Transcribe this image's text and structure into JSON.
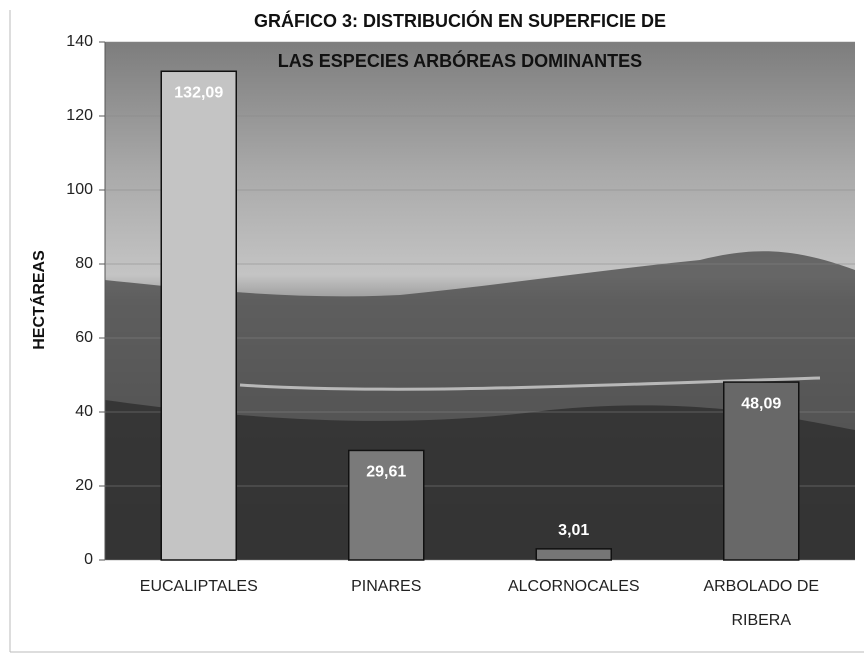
{
  "chart_data": {
    "type": "bar",
    "title": [
      "GRÁFICO 3: DISTRIBUCIÓN  EN SUPERFICIE   DE",
      "LAS ESPECIES ARBÓREAS DOMINANTES"
    ],
    "y_label": "HECTÁREAS",
    "categories": [
      "EUCALIPTALES",
      "PINARES",
      "ALCORNOCALES",
      "ARBOLADO  DE RIBERA"
    ],
    "values": [
      132.09,
      29.61,
      3.01,
      48.09
    ],
    "value_labels": [
      "132,09",
      "29,61",
      "3,01",
      "48,09"
    ],
    "colors": [
      "#c4c4c4",
      "#7a7a7a",
      "#767676",
      "#686868"
    ],
    "ylim": [
      0,
      140
    ],
    "yticks": [
      0,
      20,
      40,
      60,
      80,
      100,
      120,
      140
    ],
    "grid": true
  }
}
